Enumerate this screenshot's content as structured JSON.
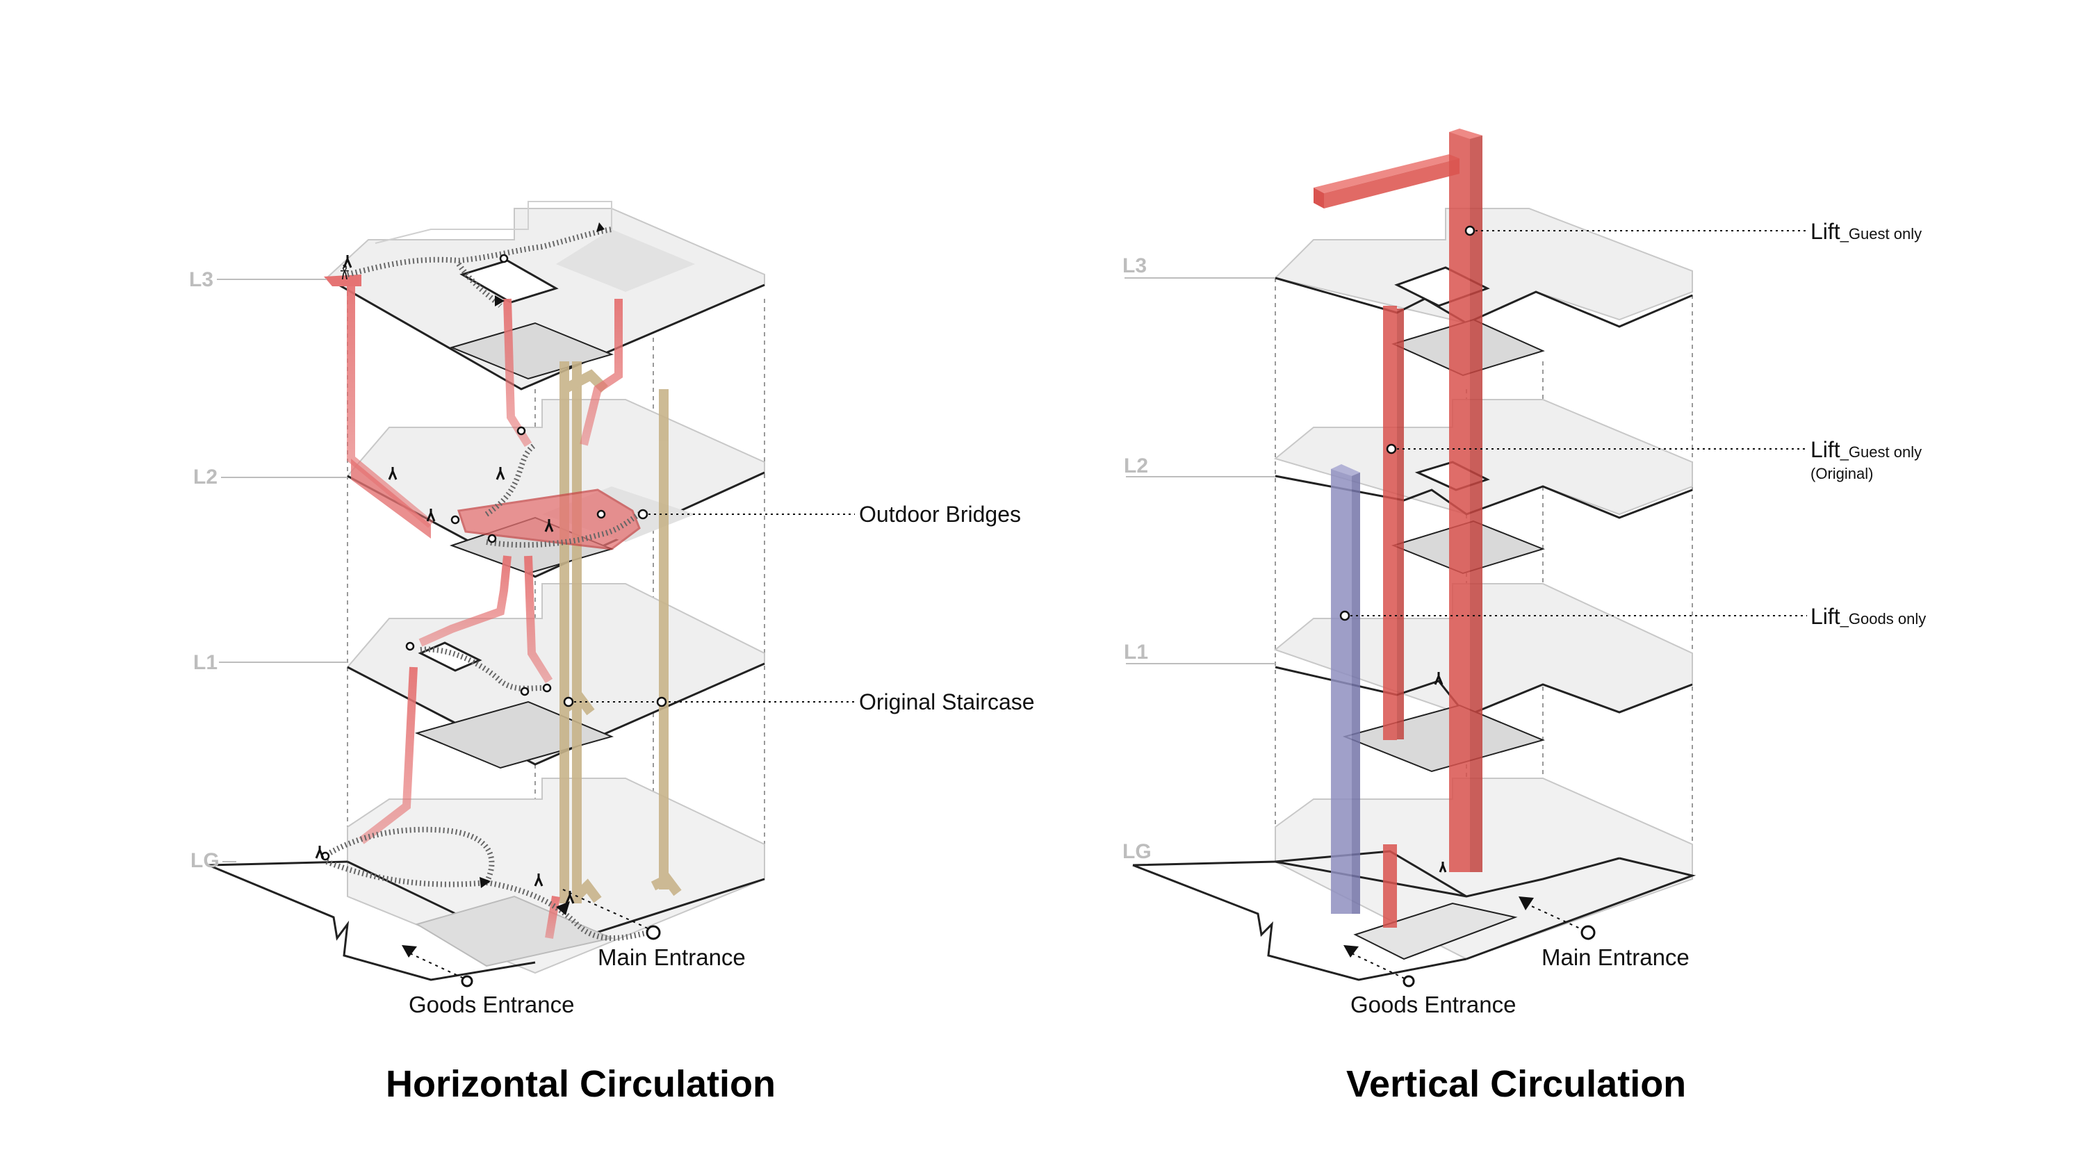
{
  "horizontal": {
    "title": "Horizontal Circulation",
    "levels": [
      "L3",
      "L2",
      "L1",
      "LG"
    ],
    "callouts": {
      "outdoor_bridges": "Outdoor Bridges",
      "original_staircase": "Original Staircase"
    },
    "entrances": {
      "main": "Main Entrance",
      "goods": "Goods Entrance"
    }
  },
  "vertical": {
    "title": "Vertical Circulation",
    "levels": [
      "L3",
      "L2",
      "L1",
      "LG"
    ],
    "callouts": {
      "lift_guest": {
        "main": "Lift",
        "sub": "_Guest only"
      },
      "lift_guest_original": {
        "main": "Lift",
        "sub": "_Guest only",
        "note": "(Original)"
      },
      "lift_goods": {
        "main": "Lift",
        "sub": "_Goods only"
      }
    },
    "entrances": {
      "main": "Main Entrance",
      "goods": "Goods Entrance"
    }
  },
  "colors": {
    "bridge_red": "#e57373",
    "lift_red": "#d9534f",
    "lift_purple": "#8f8fc0",
    "staircase_tan": "#c8b48a",
    "floor_fill": "#f1f1f1",
    "floor_edge": "#222222",
    "label_grey": "#bdbdbd"
  }
}
